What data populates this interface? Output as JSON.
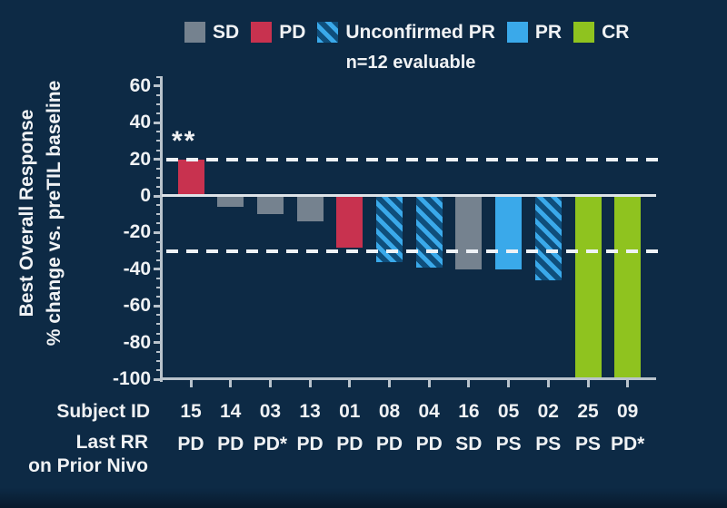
{
  "subtitle": "n=12 evaluable",
  "y_axis_title": {
    "line1": "Best Overall Response",
    "line2": "% change vs. preTIL baseline"
  },
  "row_labels": {
    "subject_id": "Subject  ID",
    "last_rr_line1": "Last RR",
    "last_rr_line2": "on Prior Nivo"
  },
  "legend": {
    "items": [
      {
        "label": "SD",
        "type": "SD"
      },
      {
        "label": "PD",
        "type": "PD"
      },
      {
        "label": "Unconfirmed PR",
        "type": "uPR"
      },
      {
        "label": "PR",
        "type": "PR"
      },
      {
        "label": "CR",
        "type": "CR"
      }
    ]
  },
  "colors": {
    "background": "#0d2a45",
    "sd": "#75828f",
    "pd": "#c8324f",
    "pr": "#3aa9ea",
    "upr_stripe": "#3aa9ea",
    "upr_base": "#0f4e7b",
    "cr": "#8fc31f",
    "axis": "#b9c3cc",
    "dashed_line": "#eef2f6",
    "zero_line": "#dde3e8",
    "text": "#f0f2f4"
  },
  "chart_data": {
    "type": "bar",
    "title": "",
    "subtitle": "n=12 evaluable",
    "xlabel": "Subject ID",
    "ylabel": "Best Overall Response % change vs. preTIL baseline",
    "ylim": [
      -100,
      65
    ],
    "yticks": [
      60,
      40,
      20,
      0,
      -20,
      -40,
      -60,
      -80,
      -100
    ],
    "reference_lines_dashed": [
      20,
      -30
    ],
    "grid": false,
    "legend_position": "top",
    "categories": [
      "15",
      "14",
      "03",
      "13",
      "01",
      "08",
      "04",
      "16",
      "05",
      "02",
      "25",
      "09"
    ],
    "series": [
      {
        "name": "Best overall response % change vs. preTIL baseline",
        "values": [
          20,
          -6,
          -10,
          -14,
          -28,
          -36,
          -39,
          -40,
          -40,
          -46,
          -100,
          -100
        ]
      }
    ],
    "bar_response_category": [
      "PD",
      "SD",
      "SD",
      "SD",
      "PD",
      "uPR",
      "uPR",
      "SD",
      "PR",
      "uPR",
      "CR",
      "CR"
    ],
    "last_rr_on_prior_nivo": [
      "PD",
      "PD",
      "PD*",
      "PD",
      "PD",
      "PD",
      "PD",
      "SD",
      "PS",
      "PS",
      "PS",
      "PD*"
    ],
    "annotations": [
      {
        "category": "15",
        "text": "**",
        "position": "above-bar"
      }
    ]
  }
}
